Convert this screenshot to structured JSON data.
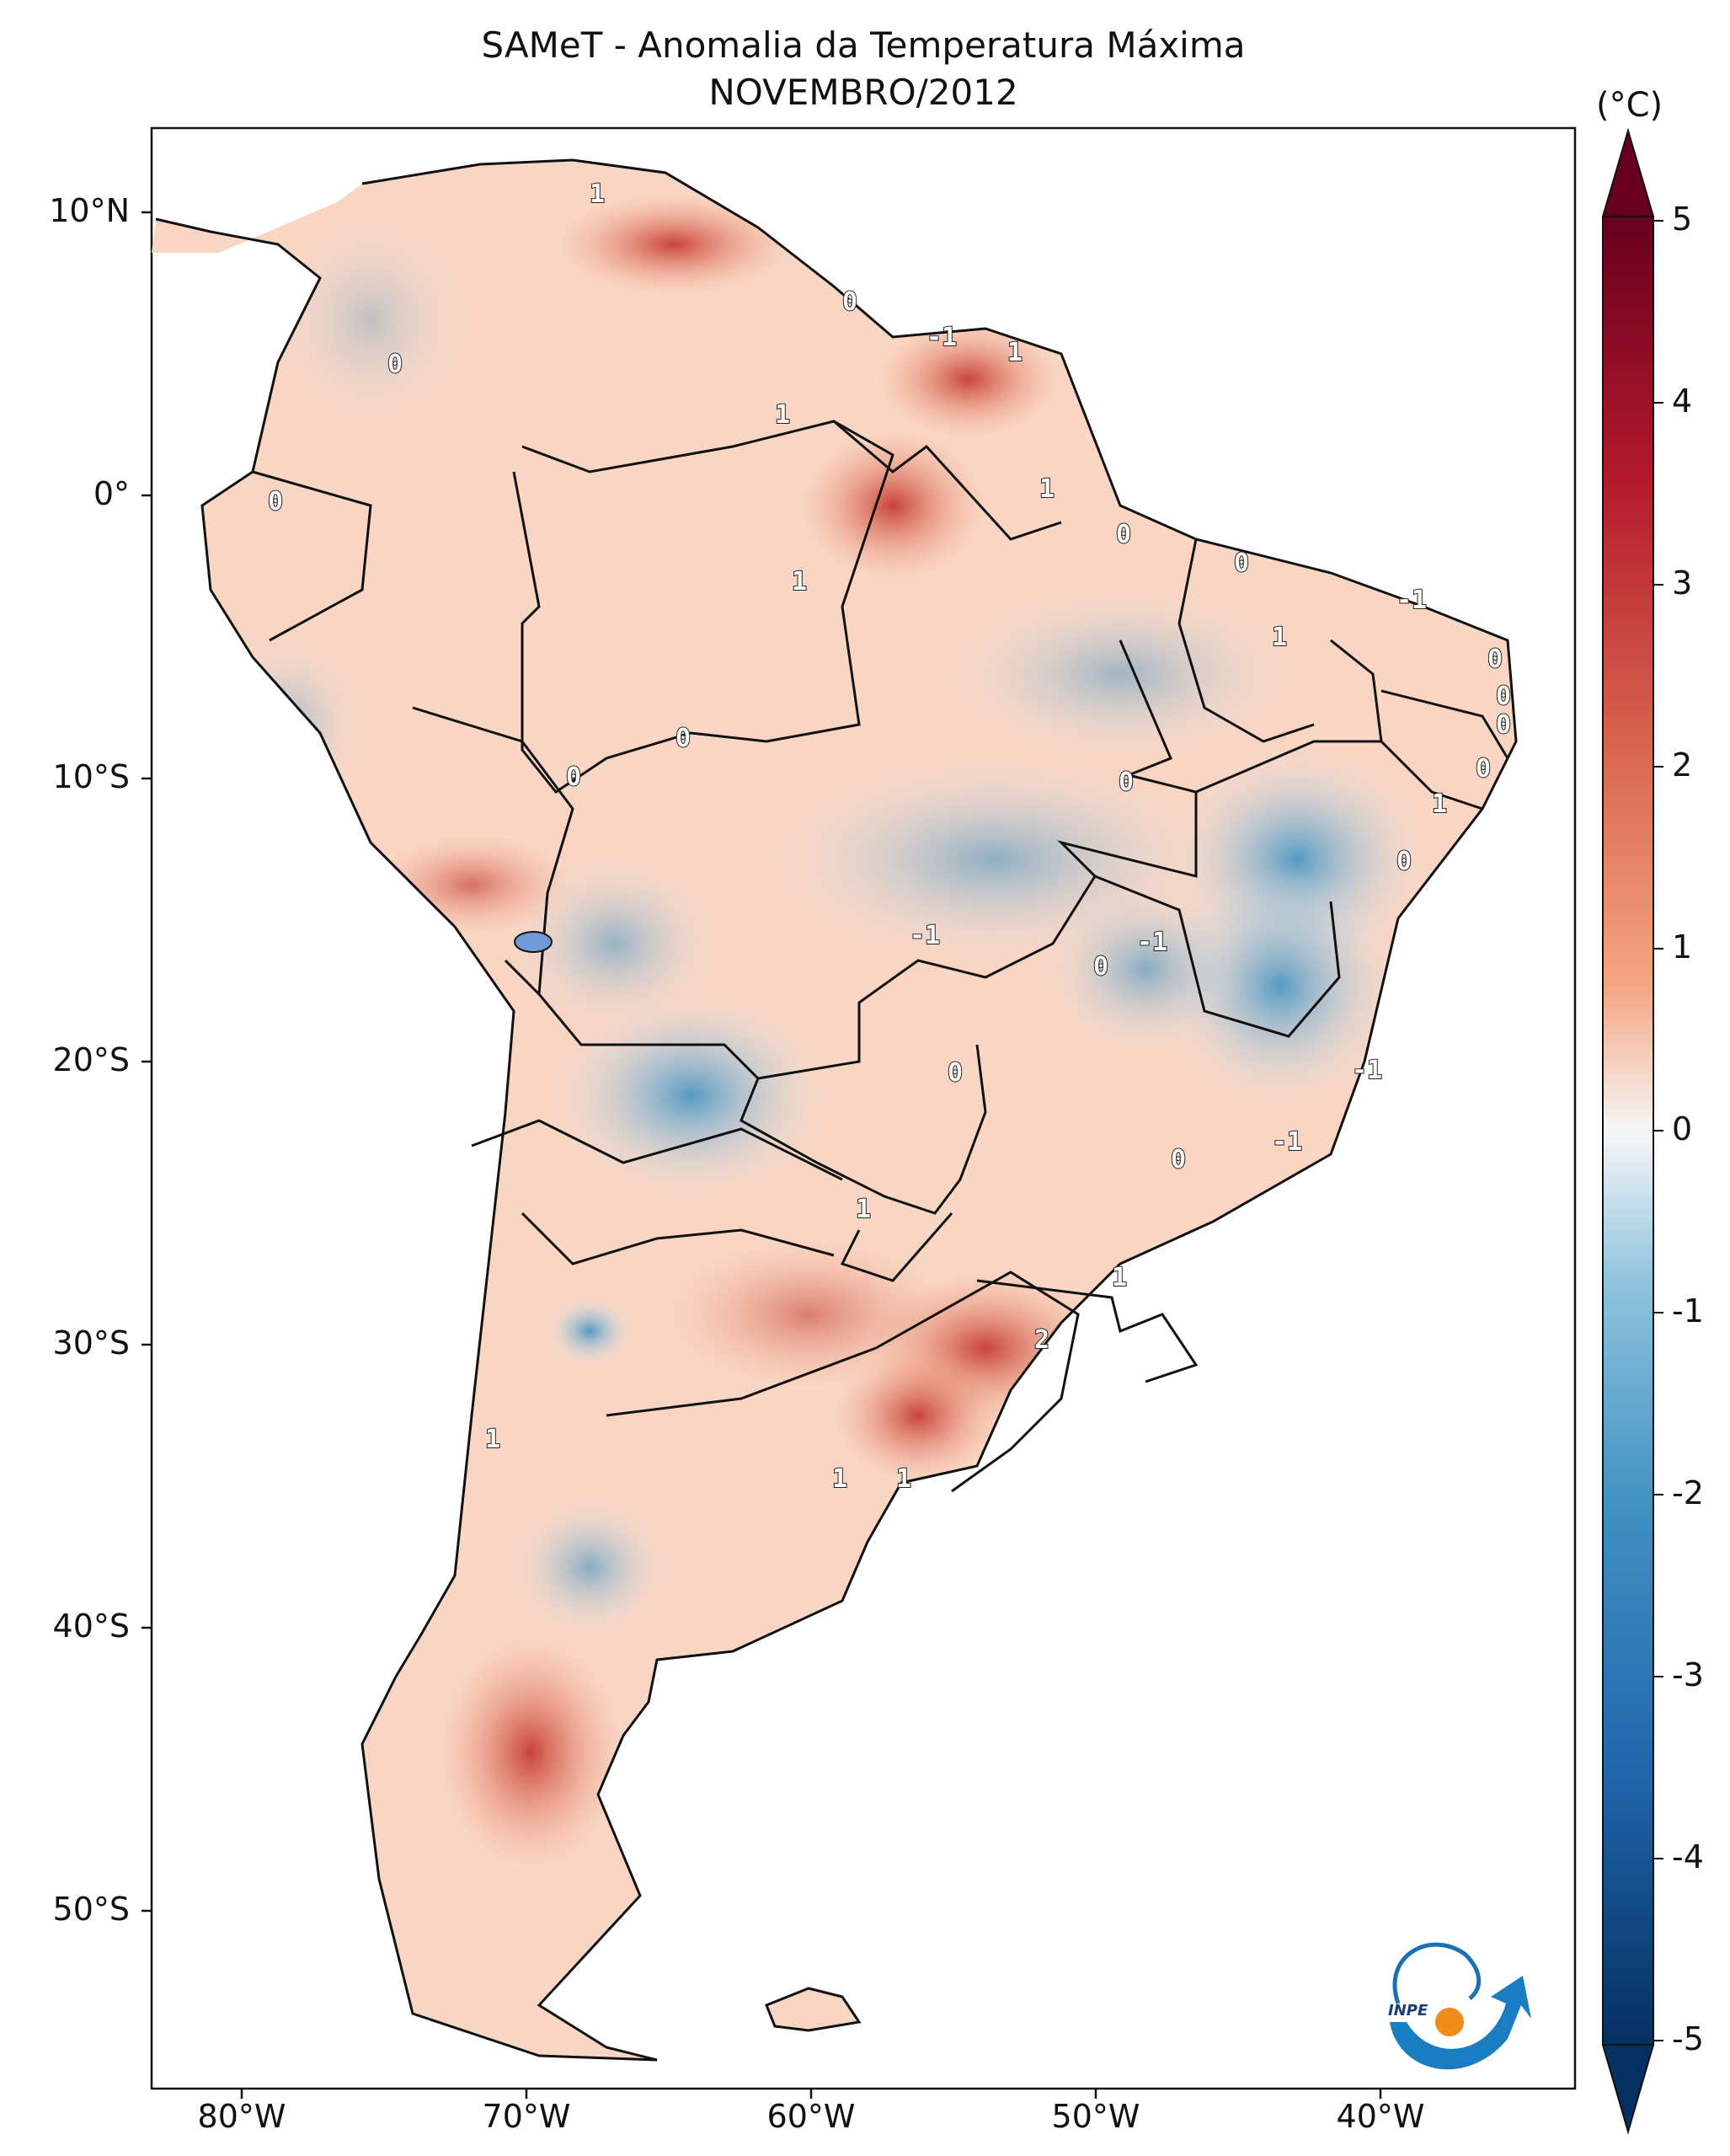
{
  "title": {
    "line1": "SAMeT - Anomalia da Temperatura Máxima",
    "line2": "NOVEMBRO/2012"
  },
  "axes": {
    "lat_labels": [
      "10°N",
      "0°",
      "10°S",
      "20°S",
      "30°S",
      "40°S",
      "50°S"
    ],
    "lon_labels": [
      "80°W",
      "70°W",
      "60°W",
      "50°W",
      "40°W"
    ]
  },
  "colorbar": {
    "unit": "(°C)",
    "ticks": [
      "5",
      "4",
      "3",
      "2",
      "1",
      "0",
      "-1",
      "-2",
      "-3",
      "-4",
      "-5"
    ],
    "min": -5,
    "max": 5,
    "colors": {
      "cold": "#053061",
      "cool": "#4393c3",
      "neutral": "#f7f7f7",
      "warm": "#d6604d",
      "hot": "#67001f"
    }
  },
  "contour_labels": [
    "1",
    "0",
    "-1",
    "1",
    "1",
    "0",
    "1",
    "1",
    "0",
    "0",
    "-1",
    "1",
    "0",
    "0",
    "0",
    "0",
    "1",
    "0",
    "0",
    "0",
    "-1",
    "0",
    "-1",
    "0",
    "0",
    "-1",
    "0",
    "-1",
    "1",
    "0",
    "1",
    "2",
    "1",
    "1",
    "1"
  ],
  "logo_text": "INPE"
}
